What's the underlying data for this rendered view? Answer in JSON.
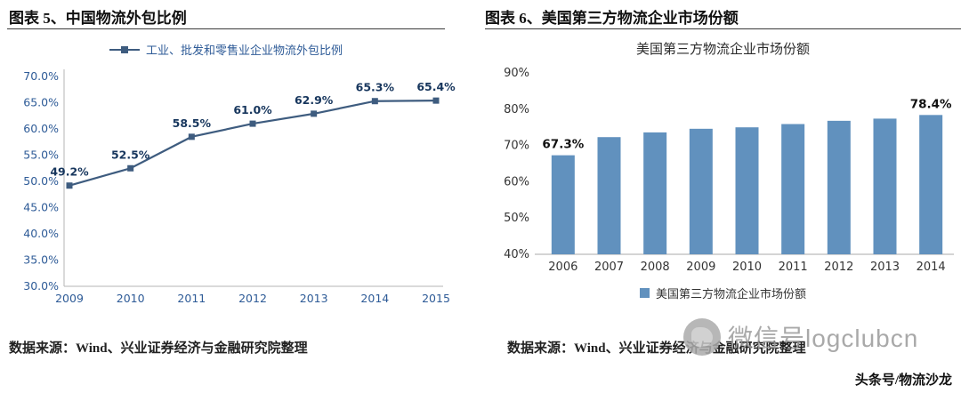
{
  "page": {
    "left_title": "图表 5、中国物流外包比例",
    "right_title": "图表 6、美国第三方物流企业市场份额",
    "left_source": "数据来源：Wind、兴业证券经济与金融研究院整理",
    "right_source": "数据来源：Wind、兴业证券经济与金融研究院整理",
    "watermark": "微信号logclubcn",
    "footer": "头条号/物流沙龙"
  },
  "colors": {
    "line": "#3E5C7F",
    "bar": "#6191BE",
    "left_axis_text": "#2E5B97",
    "left_label_text": "#17365D",
    "right_axis_text": "#333333",
    "right_label_text": "#111111",
    "watermark": "#9B9B9B"
  },
  "chart_data": [
    {
      "type": "line",
      "title": "",
      "legend": [
        "工业、批发和零售业企业物流外包比例"
      ],
      "legend_position": "top",
      "categories": [
        "2009",
        "2010",
        "2011",
        "2012",
        "2013",
        "2014",
        "2015"
      ],
      "values": [
        49.2,
        52.5,
        58.5,
        61.0,
        62.9,
        65.3,
        65.4
      ],
      "data_labels": [
        "49.2%",
        "52.5%",
        "58.5%",
        "61.0%",
        "62.9%",
        "65.3%",
        "65.4%"
      ],
      "ylabel": "",
      "xlabel": "",
      "ylim": [
        30,
        70
      ],
      "ytick_step": 5,
      "ytick_format": "percent_one_decimal",
      "grid": false
    },
    {
      "type": "bar",
      "title": "美国第三方物流企业市场份额",
      "legend": [
        "美国第三方物流企业市场份额"
      ],
      "legend_position": "bottom",
      "categories": [
        "2006",
        "2007",
        "2008",
        "2009",
        "2010",
        "2011",
        "2012",
        "2013",
        "2014"
      ],
      "values": [
        67.3,
        72.3,
        73.6,
        74.6,
        75.0,
        75.9,
        76.8,
        77.4,
        78.4
      ],
      "data_labels": {
        "0": "67.3%",
        "8": "78.4%"
      },
      "ylabel": "",
      "xlabel": "",
      "ylim": [
        40,
        90
      ],
      "ytick_step": 10,
      "ytick_format": "percent_integer",
      "grid": false
    }
  ]
}
